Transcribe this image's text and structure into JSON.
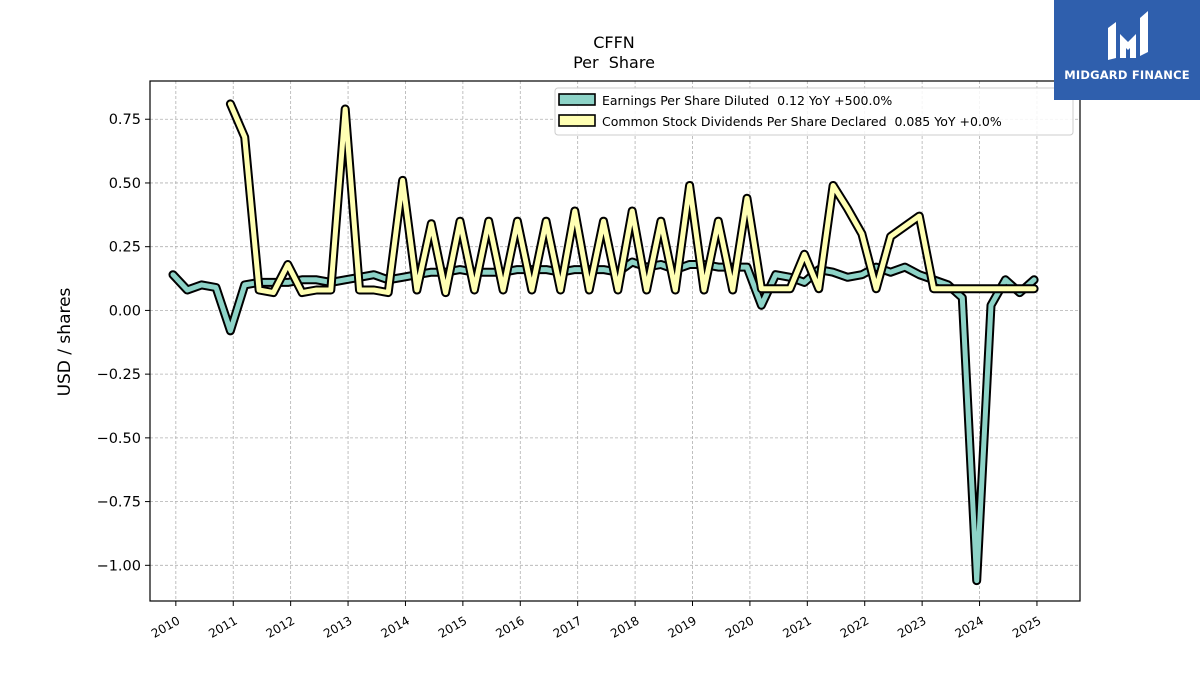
{
  "chart_data": {
    "type": "line",
    "title": "CFFN",
    "subtitle": "Per  Share",
    "xlabel": "",
    "ylabel": "USD / shares",
    "xlim": [
      2009.55,
      2025.75
    ],
    "ylim": [
      -1.14,
      0.9
    ],
    "yticks": [
      -1.0,
      -0.75,
      -0.5,
      -0.25,
      0.0,
      0.25,
      0.5,
      0.75
    ],
    "ytick_labels": [
      "−1.00",
      "−0.75",
      "−0.50",
      "−0.25",
      "0.00",
      "0.25",
      "0.50",
      "0.75"
    ],
    "xtick_labels": [
      "2010",
      "2011",
      "2012",
      "2013",
      "2014",
      "2015",
      "2016",
      "2017",
      "2018",
      "2019",
      "2020",
      "2021",
      "2022",
      "2023",
      "2024",
      "2025"
    ],
    "grid": true,
    "legend_position": "top-right",
    "series": [
      {
        "name": "Earnings Per Share Diluted  0.12 YoY +500.0%",
        "color": "#8dd3c7",
        "x": [
          2009.95,
          2010.2,
          2010.45,
          2010.7,
          2010.95,
          2011.2,
          2011.45,
          2011.7,
          2011.95,
          2012.2,
          2012.45,
          2012.7,
          2012.95,
          2013.2,
          2013.45,
          2013.7,
          2013.95,
          2014.2,
          2014.45,
          2014.7,
          2014.95,
          2015.2,
          2015.45,
          2015.7,
          2015.95,
          2016.2,
          2016.45,
          2016.7,
          2016.95,
          2017.2,
          2017.45,
          2017.7,
          2017.95,
          2018.2,
          2018.45,
          2018.7,
          2018.95,
          2019.2,
          2019.45,
          2019.7,
          2019.95,
          2020.2,
          2020.45,
          2020.7,
          2020.95,
          2021.2,
          2021.45,
          2021.7,
          2021.95,
          2022.2,
          2022.45,
          2022.7,
          2022.95,
          2023.2,
          2023.45,
          2023.7,
          2023.95,
          2024.2,
          2024.45,
          2024.7,
          2024.95
        ],
        "values": [
          0.14,
          0.08,
          0.1,
          0.09,
          -0.08,
          0.1,
          0.11,
          0.11,
          0.11,
          0.12,
          0.12,
          0.11,
          0.12,
          0.13,
          0.14,
          0.12,
          0.13,
          0.14,
          0.15,
          0.15,
          0.16,
          0.15,
          0.15,
          0.15,
          0.16,
          0.16,
          0.16,
          0.15,
          0.16,
          0.16,
          0.16,
          0.15,
          0.19,
          0.17,
          0.18,
          0.16,
          0.18,
          0.18,
          0.17,
          0.17,
          0.17,
          0.02,
          0.14,
          0.13,
          0.11,
          0.16,
          0.15,
          0.13,
          0.14,
          0.17,
          0.15,
          0.17,
          0.14,
          0.12,
          0.1,
          0.05,
          -1.06,
          0.02,
          0.12,
          0.07,
          0.12
        ]
      },
      {
        "name": "Common Stock Dividends Per Share Declared  0.085 YoY +0.0%",
        "color": "#ffffb3",
        "x": [
          2010.95,
          2011.2,
          2011.45,
          2011.7,
          2011.95,
          2012.2,
          2012.45,
          2012.7,
          2012.95,
          2013.2,
          2013.45,
          2013.7,
          2013.95,
          2014.2,
          2014.45,
          2014.7,
          2014.95,
          2015.2,
          2015.45,
          2015.7,
          2015.95,
          2016.2,
          2016.45,
          2016.7,
          2016.95,
          2017.2,
          2017.45,
          2017.7,
          2017.95,
          2018.2,
          2018.45,
          2018.7,
          2018.95,
          2019.2,
          2019.45,
          2019.7,
          2019.95,
          2020.2,
          2020.45,
          2020.7,
          2020.95,
          2021.2,
          2021.45,
          2021.7,
          2021.95,
          2022.2,
          2022.45,
          2022.7,
          2022.95,
          2023.2,
          2023.45,
          2023.7,
          2023.95,
          2024.2,
          2024.45,
          2024.7,
          2024.95
        ],
        "values": [
          0.81,
          0.68,
          0.08,
          0.07,
          0.18,
          0.07,
          0.08,
          0.08,
          0.79,
          0.08,
          0.08,
          0.07,
          0.51,
          0.08,
          0.34,
          0.07,
          0.35,
          0.08,
          0.35,
          0.08,
          0.35,
          0.08,
          0.35,
          0.08,
          0.39,
          0.08,
          0.35,
          0.08,
          0.39,
          0.08,
          0.35,
          0.08,
          0.49,
          0.08,
          0.35,
          0.08,
          0.44,
          0.085,
          0.085,
          0.085,
          0.22,
          0.085,
          0.49,
          0.4,
          0.3,
          0.085,
          0.29,
          0.33,
          0.37,
          0.085,
          0.085,
          0.085,
          0.085,
          0.085,
          0.085,
          0.085,
          0.085
        ]
      }
    ]
  },
  "logo": {
    "text": "MIDGARD FINANCE",
    "background": "#2f5fad"
  }
}
